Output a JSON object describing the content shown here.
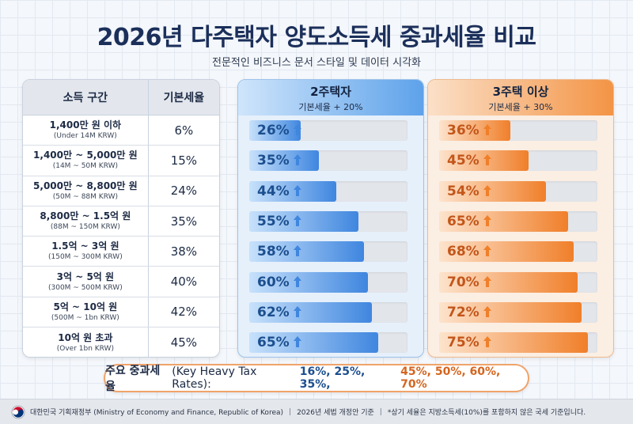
{
  "title": "2026년 다주택자 양도소득세 중과세율 비교",
  "subtitle": "전문적인 비즈니스 문서 스타일 및 데이터 시각화",
  "table": {
    "header_range": "소득 구간",
    "header_rate": "기본세율",
    "rows": [
      {
        "ko": "1,400만 원 이하",
        "en": "(Under 14M KRW)",
        "rate": "6%"
      },
      {
        "ko": "1,400만 ~ 5,000만 원",
        "en": "(14M ~ 50M KRW)",
        "rate": "15%"
      },
      {
        "ko": "5,000만 ~ 8,800만 원",
        "en": "(50M ~ 88M KRW)",
        "rate": "24%"
      },
      {
        "ko": "8,800만 ~ 1.5억 원",
        "en": "(88M ~ 150M KRW)",
        "rate": "35%"
      },
      {
        "ko": "1.5억 ~ 3억 원",
        "en": "(150M ~ 300M KRW)",
        "rate": "38%"
      },
      {
        "ko": "3억 ~ 5억 원",
        "en": "(300M ~ 500M KRW)",
        "rate": "40%"
      },
      {
        "ko": "5억 ~ 10억 원",
        "en": "(500M ~ 1bn KRW)",
        "rate": "42%"
      },
      {
        "ko": "10억 원 초과",
        "en": "(Over 1bn KRW)",
        "rate": "45%"
      }
    ]
  },
  "chart_data": {
    "type": "bar",
    "categories": [
      "1,400만 원 이하",
      "1,400만 ~ 5,000만 원",
      "5,000만 ~ 8,800만 원",
      "8,800만 ~ 1.5억 원",
      "1.5억 ~ 3억 원",
      "3억 ~ 5억 원",
      "5억 ~ 10억 원",
      "10억 원 초과"
    ],
    "base_rates": [
      6,
      15,
      24,
      35,
      38,
      40,
      42,
      45
    ],
    "series": [
      {
        "name": "2주택자",
        "subtitle": "기본세율 + 20%",
        "values": [
          26,
          35,
          44,
          55,
          58,
          60,
          62,
          65
        ],
        "color": "#3f86df"
      },
      {
        "name": "3주택 이상",
        "subtitle": "기본세율 + 30%",
        "values": [
          36,
          45,
          54,
          65,
          68,
          70,
          72,
          75
        ],
        "color": "#f07f2a"
      }
    ],
    "value_unit": "%",
    "xlim": [
      0,
      80
    ]
  },
  "key_rates": {
    "label": "주요 중과세율",
    "label_en": "(Key Heavy Tax Rates):",
    "blue_values": "16%, 25%, 35%,",
    "orange_values": "45%, 50%, 60%, 70%"
  },
  "footer": {
    "ministry": "대한민국 기획재정부 (Ministry of Economy and Finance, Republic of Korea)",
    "basis": "2026년 세법 개정안 기준",
    "note": "*상기 세율은 지방소득세(10%)를 포함하지 않은 국세 기준입니다."
  },
  "icons": {
    "arrow": "up-arrow-icon",
    "seal": "government-seal-icon"
  }
}
